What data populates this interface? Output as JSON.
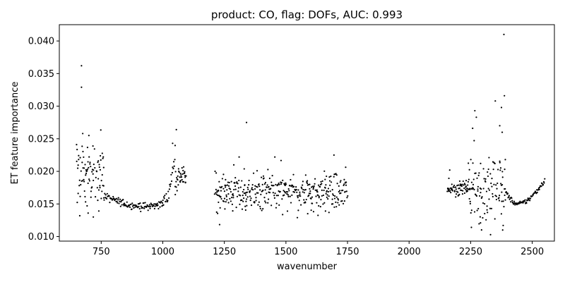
{
  "chart_data": {
    "type": "scatter",
    "title": "product: CO, flag: DOFs, AUC: 0.993",
    "xlabel": "wavenumber",
    "ylabel": "ET feature importance",
    "xlim": [
      580,
      2590
    ],
    "ylim": [
      0.0093,
      0.0425
    ],
    "xticks": [
      750,
      1000,
      1250,
      1500,
      1750,
      2000,
      2250,
      2500
    ],
    "yticks": [
      0.01,
      0.015,
      0.02,
      0.025,
      0.03,
      0.035,
      0.04
    ],
    "ytick_labels": [
      "0.010",
      "0.015",
      "0.020",
      "0.025",
      "0.030",
      "0.035",
      "0.040"
    ],
    "grid": false,
    "legend": "none",
    "marker_color": "#000000",
    "segments": [
      {
        "x_start": 650,
        "x_end": 760,
        "pattern": "noisy",
        "level": 0.0195,
        "spread": 0.0035
      },
      {
        "x_start": 760,
        "x_end": 1000,
        "pattern": "trough",
        "level_start": 0.0162,
        "level_min": 0.0146,
        "min_at": 930,
        "level_end": 0.0152,
        "spread": 0.0003
      },
      {
        "x_start": 1000,
        "x_end": 1050,
        "pattern": "rise",
        "level_start": 0.0152,
        "level_end": 0.0225,
        "spread": 0.0008
      },
      {
        "x_start": 1050,
        "x_end": 1095,
        "pattern": "noisy",
        "level": 0.019,
        "spread": 0.0015
      },
      {
        "x_start": 1210,
        "x_end": 1750,
        "pattern": "noisy",
        "level": 0.0168,
        "spread": 0.0022
      },
      {
        "x_start": 2155,
        "x_end": 2240,
        "pattern": "noisy",
        "level": 0.0175,
        "spread": 0.0008
      },
      {
        "x_start": 2240,
        "x_end": 2390,
        "pattern": "noisy",
        "level": 0.0175,
        "spread": 0.0045
      },
      {
        "x_start": 2390,
        "x_end": 2550,
        "pattern": "trough",
        "level_start": 0.017,
        "level_min": 0.015,
        "min_at": 2440,
        "level_end": 0.0186,
        "spread": 0.0002
      }
    ],
    "outliers": [
      {
        "x": 670,
        "y": 0.0362
      },
      {
        "x": 670,
        "y": 0.0329
      },
      {
        "x": 675,
        "y": 0.0258
      },
      {
        "x": 700,
        "y": 0.0255
      },
      {
        "x": 718,
        "y": 0.013
      },
      {
        "x": 697,
        "y": 0.0136
      },
      {
        "x": 650,
        "y": 0.0241
      },
      {
        "x": 1055,
        "y": 0.0264
      },
      {
        "x": 1040,
        "y": 0.0243
      },
      {
        "x": 1340,
        "y": 0.0275
      },
      {
        "x": 1310,
        "y": 0.0222
      },
      {
        "x": 1455,
        "y": 0.0222
      },
      {
        "x": 1695,
        "y": 0.0225
      },
      {
        "x": 1360,
        "y": 0.0148
      },
      {
        "x": 2267,
        "y": 0.0293
      },
      {
        "x": 2273,
        "y": 0.0283
      },
      {
        "x": 2258,
        "y": 0.0266
      },
      {
        "x": 2350,
        "y": 0.0308
      },
      {
        "x": 2375,
        "y": 0.0298
      },
      {
        "x": 2368,
        "y": 0.027
      },
      {
        "x": 2378,
        "y": 0.026
      },
      {
        "x": 2385,
        "y": 0.041
      },
      {
        "x": 2387,
        "y": 0.0316
      },
      {
        "x": 2380,
        "y": 0.011
      },
      {
        "x": 2382,
        "y": 0.0117
      },
      {
        "x": 2290,
        "y": 0.0121
      },
      {
        "x": 2165,
        "y": 0.0202
      }
    ]
  }
}
